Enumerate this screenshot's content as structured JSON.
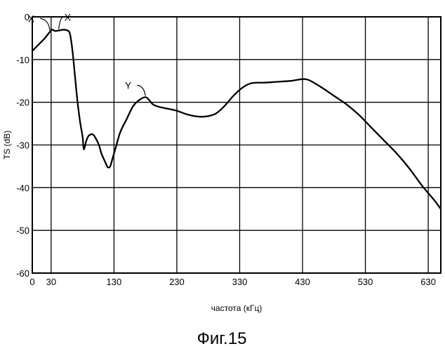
{
  "chart_data": {
    "type": "line",
    "title": "",
    "xlabel": "частота (кГц)",
    "ylabel": "TS (dB)",
    "xlim": [
      0,
      650
    ],
    "ylim": [
      -60,
      0
    ],
    "grid": true,
    "x_ticks": [
      0,
      30,
      130,
      230,
      330,
      430,
      530,
      630
    ],
    "y_ticks": [
      0,
      -10,
      -20,
      -30,
      -40,
      -50,
      -60
    ],
    "series": [
      {
        "x": [
          0,
          10,
          20,
          28,
          32,
          36,
          42,
          50,
          56,
          60,
          64,
          68,
          72,
          76,
          80,
          82,
          86,
          90,
          96,
          100,
          106,
          110,
          116,
          120,
          124,
          128,
          132,
          140,
          150,
          160,
          170,
          180,
          186,
          192,
          200,
          215,
          230,
          250,
          270,
          290,
          305,
          320,
          335,
          350,
          370,
          390,
          410,
          420,
          430,
          440,
          460,
          480,
          500,
          520,
          540,
          560,
          580,
          600,
          620,
          640,
          650
        ],
        "y": [
          -8,
          -6.5,
          -5,
          -3.5,
          -3,
          -3.3,
          -3.2,
          -3,
          -3.2,
          -4,
          -8,
          -14,
          -20,
          -24.5,
          -28,
          -31,
          -29,
          -27.8,
          -27.5,
          -28.2,
          -30,
          -32,
          -34,
          -35.2,
          -35,
          -33,
          -31,
          -27,
          -24,
          -21,
          -19.5,
          -18.8,
          -19.5,
          -20.5,
          -21,
          -21.5,
          -22,
          -23,
          -23.4,
          -22.8,
          -21,
          -18.5,
          -16.5,
          -15.5,
          -15.4,
          -15.2,
          -15,
          -14.8,
          -14.6,
          -14.8,
          -16.5,
          -18.5,
          -20.5,
          -23,
          -26,
          -29,
          -32,
          -35.5,
          -39.5,
          -43,
          -45
        ]
      }
    ],
    "annotations": [
      {
        "text": "X",
        "x": 28,
        "y": -3.5
      },
      {
        "text": "X",
        "x": 42,
        "y": -3.2
      },
      {
        "text": "Y",
        "x": 180,
        "y": -18.8
      }
    ]
  },
  "figure_caption": "Фиг.15"
}
